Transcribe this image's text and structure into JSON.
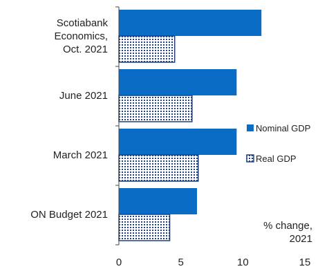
{
  "chart_data": {
    "type": "bar",
    "orientation": "horizontal",
    "categories": [
      [
        "Scotiabank",
        "Economics,",
        "Oct. 2021"
      ],
      [
        "June 2021"
      ],
      [
        "March 2021"
      ],
      [
        "ON Budget 2021"
      ]
    ],
    "series": [
      {
        "name": "Nominal GDP",
        "values": [
          11.5,
          9.5,
          9.5,
          6.3
        ],
        "color": "#0a6cc4",
        "pattern": "solid"
      },
      {
        "name": "Real GDP",
        "values": [
          4.5,
          5.9,
          6.4,
          4.1
        ],
        "color": "#1f3e7a",
        "pattern": "dotted"
      }
    ],
    "xlim": [
      0,
      15
    ],
    "xticks": [
      "0",
      "5",
      "10",
      "15"
    ],
    "annotation": [
      "% change,",
      "2021"
    ],
    "legend_position": "right",
    "grid": false
  }
}
